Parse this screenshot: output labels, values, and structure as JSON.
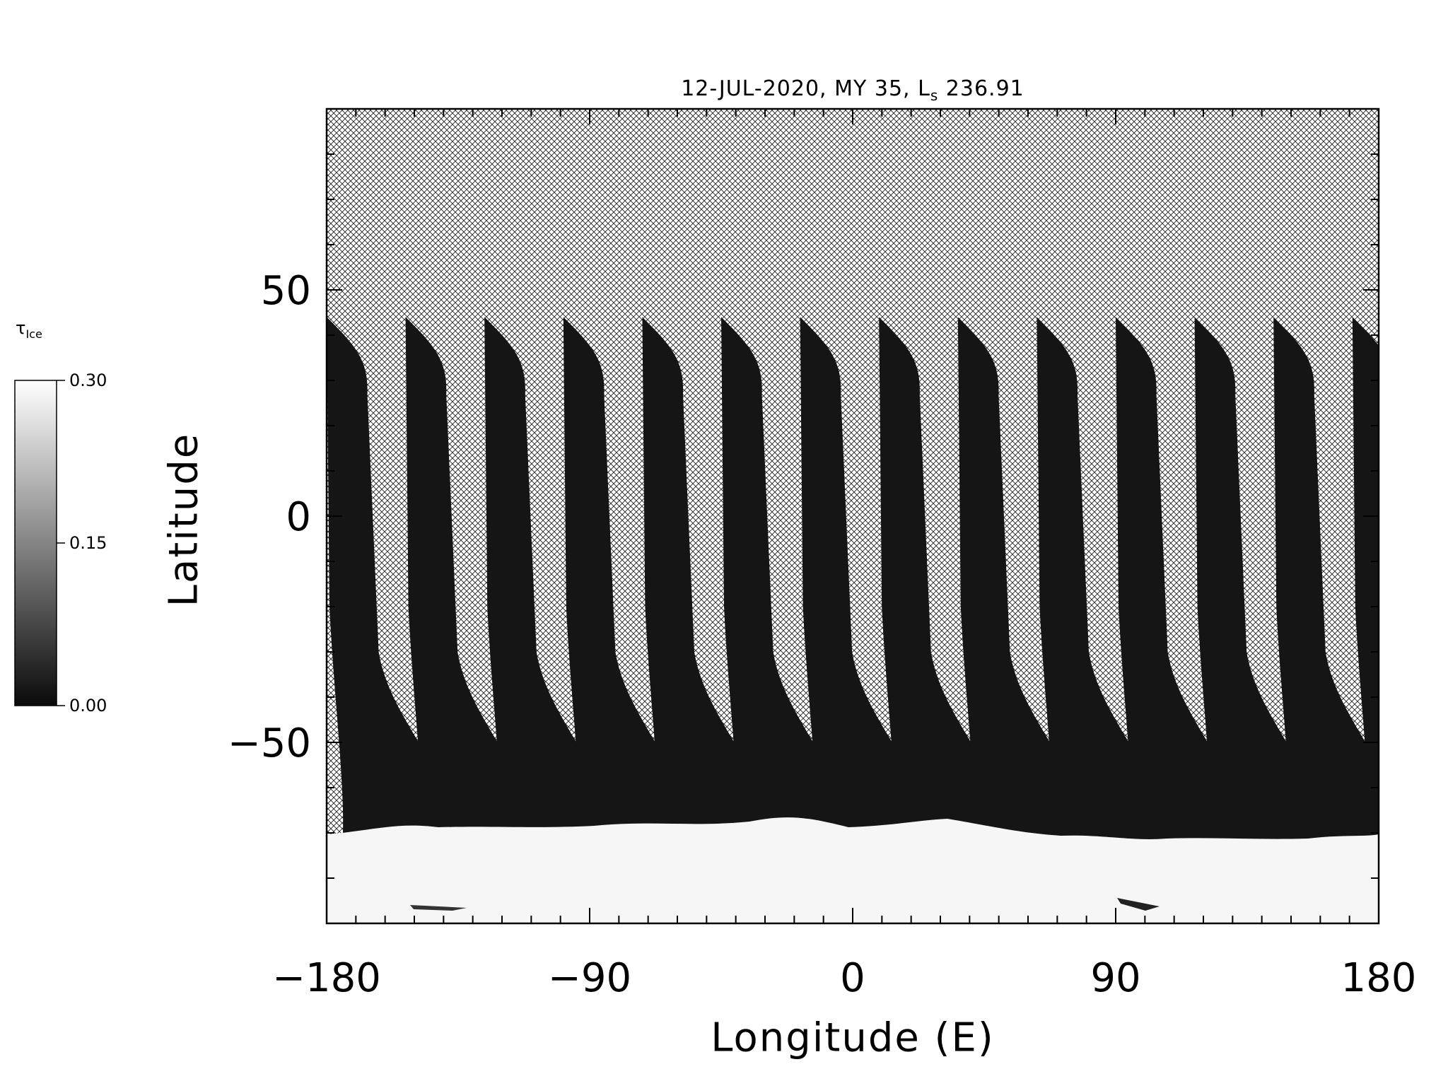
{
  "chart_data": {
    "type": "heatmap",
    "title": "12-JUL-2020, MY 35,  L",
    "title_sub": "s",
    "title_value": "236.91",
    "xlabel": "Longitude (E)",
    "ylabel": "Latitude",
    "xlim": [
      -180,
      180
    ],
    "ylim": [
      -90,
      90
    ],
    "x_ticks": [
      "−180",
      "−90",
      "0",
      "90",
      "180"
    ],
    "x_tick_values": [
      -180,
      -90,
      0,
      90,
      180
    ],
    "y_ticks": [
      "−50",
      "0",
      "50"
    ],
    "y_tick_values": [
      -50,
      0,
      50
    ],
    "colorbar": {
      "label": "τ",
      "label_sub": "Ice",
      "min": 0.0,
      "max": 0.3,
      "ticks": [
        "0.30",
        "0.15",
        "0.00"
      ],
      "tick_values": [
        0.3,
        0.15,
        0.0
      ],
      "colormap": "grayscale"
    },
    "missing_data_pattern": "crosshatch",
    "swaths": [
      {
        "lon_north": -180,
        "lon_south": -180
      },
      {
        "lon_north": -153,
        "lon_south": -153
      },
      {
        "lon_north": -126,
        "lon_south": -126
      },
      {
        "lon_north": -99,
        "lon_south": -99
      },
      {
        "lon_north": -72,
        "lon_south": -72
      },
      {
        "lon_north": -45,
        "lon_south": -45
      },
      {
        "lon_north": -18,
        "lon_south": -18
      },
      {
        "lon_north": 9,
        "lon_south": 9
      },
      {
        "lon_north": 36,
        "lon_south": 36
      },
      {
        "lon_north": 63,
        "lon_south": 63
      },
      {
        "lon_north": 90,
        "lon_south": 90
      },
      {
        "lon_north": 117,
        "lon_south": 117
      },
      {
        "lon_north": 144,
        "lon_south": 144
      },
      {
        "lon_north": 171,
        "lon_south": 171
      }
    ],
    "south_polar_cap_edge_lat": -70,
    "swath_north_lat": 44,
    "grid": false
  }
}
